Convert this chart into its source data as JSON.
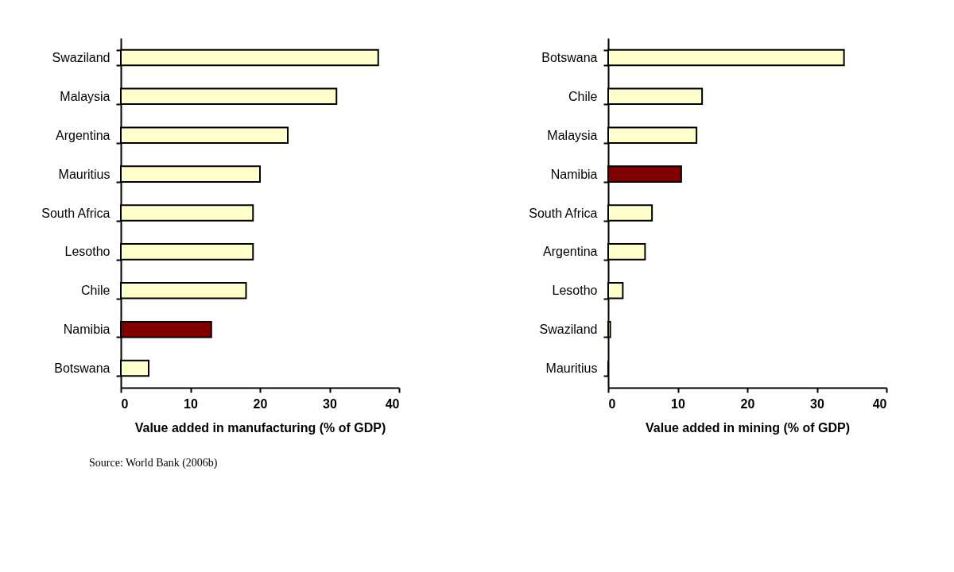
{
  "chart_data": [
    {
      "type": "bar",
      "orientation": "horizontal",
      "xlabel": "Value added in manufacturing (% of GDP)",
      "categories": [
        "Swaziland",
        "Malaysia",
        "Argentina",
        "Mauritius",
        "South Africa",
        "Lesotho",
        "Chile",
        "Namibia",
        "Botswana"
      ],
      "values": [
        37,
        31,
        24,
        20,
        19,
        19,
        18,
        13,
        4
      ],
      "colors": [
        "#ffffcc",
        "#ffffcc",
        "#ffffcc",
        "#ffffcc",
        "#ffffcc",
        "#ffffcc",
        "#ffffcc",
        "#800000",
        "#ffffcc"
      ],
      "xlim": [
        0,
        40
      ],
      "xticks": [
        0,
        10,
        20,
        30,
        40
      ]
    },
    {
      "type": "bar",
      "orientation": "horizontal",
      "xlabel": "Value added in mining (% of GDP)",
      "categories": [
        "Botswana",
        "Chile",
        "Malaysia",
        "Namibia",
        "South Africa",
        "Argentina",
        "Lesotho",
        "Swaziland",
        "Mauritius"
      ],
      "values": [
        33.9,
        13.5,
        12.7,
        10.5,
        6.3,
        5.3,
        2.1,
        0.3,
        0
      ],
      "colors": [
        "#ffffcc",
        "#ffffcc",
        "#ffffcc",
        "#800000",
        "#ffffcc",
        "#ffffcc",
        "#ffffcc",
        "#ffffcc",
        "#ffffcc"
      ],
      "xlim": [
        0,
        40
      ],
      "xticks": [
        0,
        10,
        20,
        30,
        40
      ],
      "annotations": [
        "Source: World Bank (2006b)"
      ]
    }
  ]
}
